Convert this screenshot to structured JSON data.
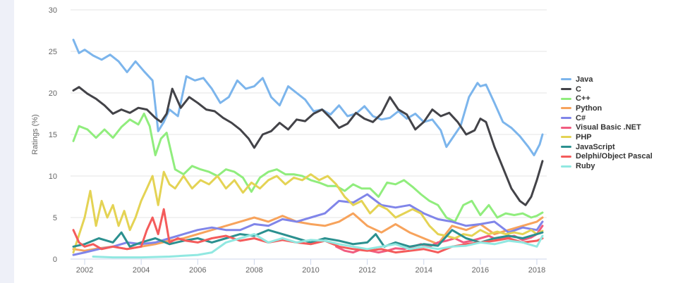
{
  "chart_data": {
    "type": "line",
    "ylabel": "Ratings (%)",
    "xlabel": "",
    "title": "",
    "ylim": [
      0,
      30
    ],
    "xlim": [
      2001.5,
      2018.35
    ],
    "y_ticks": [
      "0",
      "5",
      "10",
      "15",
      "20",
      "25",
      "30"
    ],
    "x_ticks": [
      "2002",
      "2004",
      "2006",
      "2008",
      "2010",
      "2012",
      "2014",
      "2016",
      "2018"
    ],
    "grid": "horizontal",
    "legend_placement": "right",
    "series": [
      {
        "name": "Java",
        "color": "#7cb5ec",
        "x": [
          2001.6,
          2001.8,
          2002.0,
          2002.3,
          2002.6,
          2002.9,
          2003.2,
          2003.5,
          2003.8,
          2004.1,
          2004.4,
          2004.6,
          2004.8,
          2005.0,
          2005.3,
          2005.6,
          2005.9,
          2006.2,
          2006.5,
          2006.8,
          2007.1,
          2007.4,
          2007.7,
          2008.0,
          2008.3,
          2008.6,
          2008.9,
          2009.2,
          2009.5,
          2009.8,
          2010.1,
          2010.4,
          2010.7,
          2011.0,
          2011.3,
          2011.6,
          2011.9,
          2012.2,
          2012.5,
          2012.8,
          2013.1,
          2013.4,
          2013.7,
          2014.0,
          2014.3,
          2014.6,
          2014.8,
          2015.0,
          2015.3,
          2015.6,
          2015.9,
          2016.0,
          2016.2,
          2016.5,
          2016.8,
          2017.1,
          2017.4,
          2017.7,
          2017.9,
          2018.1,
          2018.2
        ],
        "values": [
          26.4,
          24.8,
          25.2,
          24.5,
          24.0,
          24.6,
          23.8,
          22.5,
          23.8,
          22.6,
          21.5,
          15.4,
          16.5,
          18.0,
          17.2,
          22.0,
          21.5,
          21.8,
          20.5,
          18.8,
          19.5,
          21.5,
          20.5,
          20.8,
          21.8,
          19.5,
          18.5,
          20.8,
          20.0,
          19.2,
          17.8,
          18.0,
          17.4,
          18.5,
          17.2,
          17.5,
          18.4,
          17.2,
          16.8,
          17.0,
          17.8,
          16.9,
          17.5,
          16.5,
          16.8,
          15.5,
          13.5,
          14.5,
          16.0,
          19.5,
          21.2,
          20.8,
          21.0,
          18.8,
          16.5,
          15.8,
          14.8,
          13.5,
          12.5,
          13.8,
          15.0
        ]
      },
      {
        "name": "C",
        "color": "#434348",
        "x": [
          2001.6,
          2001.8,
          2002.1,
          2002.4,
          2002.7,
          2003.0,
          2003.3,
          2003.6,
          2003.9,
          2004.2,
          2004.5,
          2004.7,
          2004.9,
          2005.1,
          2005.4,
          2005.7,
          2006.0,
          2006.3,
          2006.6,
          2006.9,
          2007.2,
          2007.5,
          2007.8,
          2008.0,
          2008.3,
          2008.6,
          2008.9,
          2009.2,
          2009.5,
          2009.8,
          2010.1,
          2010.4,
          2010.7,
          2011.0,
          2011.3,
          2011.6,
          2011.9,
          2012.2,
          2012.5,
          2012.8,
          2013.1,
          2013.4,
          2013.7,
          2014.0,
          2014.3,
          2014.6,
          2014.9,
          2015.2,
          2015.5,
          2015.8,
          2016.0,
          2016.2,
          2016.5,
          2016.8,
          2017.1,
          2017.4,
          2017.6,
          2017.8,
          2018.0,
          2018.2
        ],
        "values": [
          20.3,
          20.7,
          19.9,
          19.3,
          18.5,
          17.5,
          18.0,
          17.6,
          18.2,
          18.0,
          17.0,
          16.5,
          17.5,
          20.5,
          18.2,
          19.5,
          18.8,
          18.0,
          17.8,
          17.0,
          16.4,
          15.6,
          14.5,
          13.4,
          15.0,
          15.4,
          16.4,
          15.6,
          16.8,
          16.6,
          17.5,
          18.0,
          17.0,
          15.8,
          16.3,
          17.6,
          16.9,
          16.5,
          17.5,
          19.5,
          18.0,
          17.4,
          15.6,
          16.5,
          18.0,
          17.2,
          17.6,
          16.5,
          15.0,
          15.5,
          16.9,
          16.5,
          13.5,
          11.0,
          8.5,
          7.0,
          6.5,
          7.5,
          9.5,
          11.8
        ]
      },
      {
        "name": "C++",
        "color": "#90ed7d",
        "x": [
          2001.6,
          2001.8,
          2002.1,
          2002.4,
          2002.7,
          2003.0,
          2003.3,
          2003.6,
          2003.9,
          2004.1,
          2004.3,
          2004.5,
          2004.7,
          2004.9,
          2005.2,
          2005.5,
          2005.8,
          2006.1,
          2006.4,
          2006.7,
          2007.0,
          2007.3,
          2007.6,
          2007.9,
          2008.2,
          2008.5,
          2008.8,
          2009.1,
          2009.4,
          2009.7,
          2010.0,
          2010.3,
          2010.6,
          2010.9,
          2011.2,
          2011.5,
          2011.8,
          2012.1,
          2012.4,
          2012.7,
          2013.0,
          2013.3,
          2013.6,
          2013.9,
          2014.2,
          2014.5,
          2014.8,
          2015.1,
          2015.4,
          2015.7,
          2016.0,
          2016.3,
          2016.6,
          2016.9,
          2017.2,
          2017.5,
          2017.8,
          2018.0,
          2018.2
        ],
        "values": [
          14.2,
          16.0,
          15.6,
          14.6,
          15.6,
          14.6,
          15.9,
          16.8,
          16.2,
          17.5,
          16.0,
          12.5,
          14.5,
          15.2,
          10.8,
          10.2,
          11.2,
          10.8,
          10.5,
          10.0,
          10.8,
          10.5,
          9.8,
          8.1,
          9.8,
          10.5,
          10.8,
          10.2,
          10.2,
          10.0,
          9.5,
          9.2,
          8.8,
          8.8,
          8.2,
          9.0,
          8.5,
          8.5,
          7.5,
          9.2,
          9.0,
          9.5,
          8.7,
          7.8,
          7.0,
          6.5,
          5.0,
          4.5,
          6.5,
          7.0,
          5.3,
          6.5,
          5.0,
          5.5,
          5.3,
          5.5,
          5.0,
          5.2,
          5.6
        ]
      },
      {
        "name": "Python",
        "color": "#f7a35c",
        "x": [
          2001.6,
          2002.0,
          2002.5,
          2003.0,
          2003.5,
          2004.0,
          2004.5,
          2005.0,
          2005.5,
          2006.0,
          2006.5,
          2007.0,
          2007.5,
          2008.0,
          2008.5,
          2009.0,
          2009.5,
          2010.0,
          2010.5,
          2011.0,
          2011.5,
          2012.0,
          2012.5,
          2013.0,
          2013.5,
          2014.0,
          2014.5,
          2015.0,
          2015.5,
          2016.0,
          2016.5,
          2017.0,
          2017.5,
          2018.0,
          2018.2
        ],
        "values": [
          1.2,
          1.0,
          1.3,
          1.5,
          1.2,
          1.5,
          1.8,
          2.2,
          2.5,
          3.0,
          3.5,
          4.0,
          4.5,
          5.0,
          4.5,
          5.2,
          4.5,
          4.2,
          4.0,
          4.5,
          5.5,
          4.0,
          3.2,
          4.2,
          3.2,
          2.5,
          1.8,
          4.0,
          3.5,
          4.2,
          3.0,
          3.5,
          4.0,
          4.5,
          5.0
        ]
      },
      {
        "name": "C#",
        "color": "#8085e9",
        "x": [
          2001.6,
          2002.0,
          2002.5,
          2003.0,
          2003.5,
          2004.0,
          2004.5,
          2005.0,
          2005.5,
          2006.0,
          2006.5,
          2007.0,
          2007.5,
          2008.0,
          2008.5,
          2009.0,
          2009.5,
          2010.0,
          2010.5,
          2011.0,
          2011.5,
          2012.0,
          2012.5,
          2013.0,
          2013.5,
          2014.0,
          2014.5,
          2015.0,
          2015.5,
          2016.0,
          2016.5,
          2017.0,
          2017.5,
          2018.0,
          2018.2
        ],
        "values": [
          0.5,
          0.8,
          1.2,
          1.5,
          2.0,
          1.8,
          2.0,
          2.5,
          3.0,
          3.5,
          3.8,
          3.5,
          3.5,
          4.2,
          4.0,
          4.8,
          4.5,
          5.0,
          5.5,
          7.0,
          6.8,
          7.8,
          6.5,
          6.2,
          6.5,
          5.5,
          4.8,
          4.5,
          4.0,
          4.2,
          4.5,
          3.2,
          3.8,
          3.5,
          4.5
        ]
      },
      {
        "name": "Visual Basic .NET",
        "color": "#f15c80",
        "x": [
          2010.9,
          2011.2,
          2011.5,
          2011.8,
          2012.1,
          2012.4,
          2012.7,
          2013.0,
          2013.3,
          2013.6,
          2013.9,
          2014.2,
          2014.5,
          2014.8,
          2015.1,
          2015.4,
          2015.7,
          2016.0,
          2016.3,
          2016.6,
          2016.9,
          2017.2,
          2017.5,
          2017.8,
          2018.0,
          2018.2
        ],
        "values": [
          1.5,
          1.0,
          0.8,
          1.2,
          1.0,
          0.8,
          1.0,
          1.3,
          1.2,
          1.5,
          1.8,
          1.5,
          2.0,
          2.2,
          2.5,
          2.0,
          2.2,
          2.5,
          2.8,
          2.3,
          2.6,
          2.8,
          2.3,
          2.6,
          3.0,
          4.0
        ]
      },
      {
        "name": "PHP",
        "color": "#e4d354",
        "x": [
          2001.6,
          2002.0,
          2002.2,
          2002.4,
          2002.6,
          2002.8,
          2003.0,
          2003.2,
          2003.4,
          2003.6,
          2003.8,
          2004.0,
          2004.2,
          2004.4,
          2004.6,
          2004.8,
          2005.0,
          2005.2,
          2005.5,
          2005.8,
          2006.1,
          2006.4,
          2006.7,
          2007.0,
          2007.3,
          2007.6,
          2007.9,
          2008.2,
          2008.5,
          2008.8,
          2009.1,
          2009.4,
          2009.7,
          2010.0,
          2010.3,
          2010.6,
          2010.9,
          2011.2,
          2011.5,
          2011.8,
          2012.1,
          2012.4,
          2012.7,
          2013.0,
          2013.3,
          2013.6,
          2013.9,
          2014.2,
          2014.5,
          2014.8,
          2015.1,
          2015.4,
          2015.7,
          2016.0,
          2016.3,
          2016.6,
          2016.9,
          2017.2,
          2017.5,
          2017.8,
          2018.0,
          2018.2
        ],
        "values": [
          0.8,
          5.0,
          8.2,
          4.0,
          7.0,
          5.0,
          6.5,
          4.0,
          5.8,
          3.5,
          5.0,
          7.0,
          8.5,
          10.0,
          6.5,
          10.5,
          9.0,
          8.5,
          10.0,
          8.5,
          9.5,
          9.0,
          10.0,
          8.5,
          9.5,
          8.0,
          9.2,
          8.5,
          9.5,
          10.0,
          9.0,
          9.8,
          9.5,
          10.2,
          9.5,
          10.0,
          9.0,
          7.5,
          6.5,
          7.0,
          5.5,
          6.5,
          6.0,
          5.0,
          5.5,
          6.0,
          5.5,
          4.0,
          3.0,
          2.8,
          2.5,
          3.0,
          2.8,
          3.5,
          3.0,
          3.3,
          3.0,
          3.2,
          3.0,
          3.5,
          3.0,
          3.4
        ]
      },
      {
        "name": "JavaScript",
        "color": "#2b908f",
        "x": [
          2001.6,
          2002.0,
          2002.5,
          2003.0,
          2003.3,
          2003.6,
          2004.0,
          2004.5,
          2005.0,
          2005.5,
          2006.0,
          2006.5,
          2007.0,
          2007.5,
          2008.0,
          2008.5,
          2009.0,
          2009.5,
          2010.0,
          2010.5,
          2011.0,
          2011.5,
          2012.0,
          2012.3,
          2012.6,
          2013.0,
          2013.5,
          2014.0,
          2014.5,
          2015.0,
          2015.5,
          2016.0,
          2016.5,
          2017.0,
          2017.5,
          2018.0,
          2018.2
        ],
        "values": [
          1.5,
          1.8,
          2.5,
          2.0,
          3.2,
          1.5,
          2.0,
          2.5,
          1.8,
          2.2,
          2.5,
          2.0,
          2.5,
          3.0,
          2.8,
          3.5,
          3.0,
          2.5,
          2.0,
          2.5,
          2.2,
          1.8,
          2.0,
          3.0,
          1.5,
          2.0,
          1.5,
          1.8,
          1.6,
          3.5,
          2.5,
          2.0,
          2.5,
          2.8,
          2.5,
          3.0,
          3.2
        ]
      },
      {
        "name": "Delphi/Object Pascal",
        "color": "#f45b5b",
        "x": [
          2001.6,
          2001.8,
          2002.0,
          2002.3,
          2002.6,
          2003.0,
          2003.5,
          2004.0,
          2004.2,
          2004.4,
          2004.6,
          2004.8,
          2005.0,
          2005.3,
          2005.6,
          2006.0,
          2006.5,
          2007.0,
          2007.5,
          2008.0,
          2008.5,
          2009.0,
          2009.5,
          2010.0,
          2010.5,
          2011.0,
          2011.5,
          2012.0,
          2012.5,
          2013.0,
          2013.5,
          2014.0,
          2014.5,
          2015.0,
          2015.5,
          2016.0,
          2016.5,
          2017.0,
          2017.5,
          2018.0,
          2018.2
        ],
        "values": [
          3.5,
          2.0,
          1.5,
          1.8,
          1.2,
          1.5,
          1.2,
          1.5,
          3.5,
          5.0,
          3.0,
          6.0,
          2.0,
          2.5,
          2.2,
          2.0,
          2.5,
          2.8,
          2.2,
          2.5,
          2.0,
          2.3,
          2.0,
          1.8,
          2.2,
          1.5,
          1.2,
          1.0,
          1.2,
          0.8,
          1.0,
          1.2,
          0.8,
          1.5,
          1.8,
          2.0,
          2.2,
          2.5,
          2.0,
          2.2,
          2.5
        ]
      },
      {
        "name": "Ruby",
        "color": "#91e8e1",
        "x": [
          2002.3,
          2003.0,
          2004.0,
          2005.0,
          2005.5,
          2006.0,
          2006.5,
          2007.0,
          2007.5,
          2008.0,
          2008.5,
          2009.0,
          2009.5,
          2010.0,
          2010.5,
          2011.0,
          2011.5,
          2012.0,
          2012.5,
          2013.0,
          2013.5,
          2014.0,
          2014.5,
          2015.0,
          2015.5,
          2016.0,
          2016.5,
          2017.0,
          2017.5,
          2018.0,
          2018.2
        ],
        "values": [
          0.3,
          0.2,
          0.2,
          0.3,
          0.4,
          0.5,
          0.8,
          2.0,
          2.5,
          3.0,
          2.0,
          2.5,
          2.0,
          2.3,
          2.2,
          1.8,
          1.5,
          1.2,
          1.5,
          1.8,
          1.2,
          1.5,
          1.2,
          1.5,
          1.6,
          2.0,
          1.8,
          2.2,
          2.0,
          1.5,
          2.8
        ]
      }
    ]
  }
}
